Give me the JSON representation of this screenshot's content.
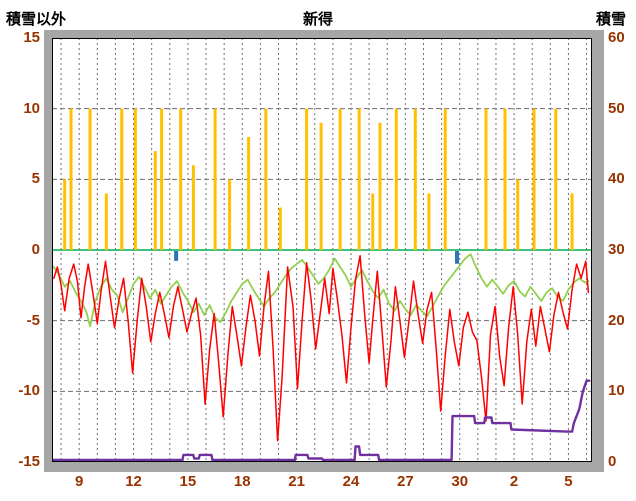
{
  "colors": {
    "frame": "#a6a6a6",
    "plot_bg": "#ffffff",
    "plot_border": "#000000",
    "grid": "#6e6e6e",
    "zero_line": "#00b050",
    "bars": "#ffc000",
    "temp_line": "#ff0000",
    "green_line": "#92d050",
    "snow_line": "#7030a0",
    "precip_mark": "#2e75b6",
    "tick_label": "#993300",
    "title_text": "#000000"
  },
  "chart_data": {
    "type": "line",
    "title": "新得",
    "left_axis": {
      "label": "積雪以外",
      "min": -15,
      "max": 15,
      "ticks": [
        15,
        10,
        5,
        0,
        -5,
        -10,
        -15
      ]
    },
    "right_axis": {
      "label": "積雪",
      "min": 0,
      "max": 60,
      "ticks": [
        60,
        50,
        40,
        30,
        20,
        10,
        0
      ]
    },
    "x_axis": {
      "min": 7.5,
      "max": 37.3,
      "grid_start": 8,
      "grid_end": 37,
      "tick_days": [
        9,
        12,
        15,
        18,
        21,
        24,
        27,
        30,
        33,
        36
      ],
      "tick_labels": [
        "9",
        "12",
        "15",
        "18",
        "21",
        "24",
        "27",
        "30",
        "2",
        "5"
      ]
    },
    "series": [
      {
        "name": "sunshine-bars",
        "kind": "bar",
        "axis": "left",
        "color_key": "bars",
        "points": [
          [
            8.2,
            5
          ],
          [
            8.55,
            10
          ],
          [
            9.6,
            10
          ],
          [
            10.5,
            4
          ],
          [
            11.35,
            10
          ],
          [
            12.1,
            10
          ],
          [
            13.2,
            7
          ],
          [
            13.55,
            10
          ],
          [
            14.6,
            10
          ],
          [
            15.3,
            6
          ],
          [
            16.5,
            10
          ],
          [
            17.3,
            5
          ],
          [
            18.35,
            8
          ],
          [
            19.3,
            10
          ],
          [
            20.1,
            3
          ],
          [
            21.55,
            10
          ],
          [
            22.35,
            9
          ],
          [
            23.4,
            10
          ],
          [
            24.45,
            10
          ],
          [
            25.2,
            4
          ],
          [
            25.6,
            9
          ],
          [
            26.5,
            10
          ],
          [
            27.55,
            10
          ],
          [
            28.3,
            4
          ],
          [
            29.2,
            10
          ],
          [
            31.45,
            10
          ],
          [
            32.5,
            10
          ],
          [
            33.2,
            5
          ],
          [
            34.1,
            10
          ],
          [
            35.3,
            10
          ],
          [
            36.2,
            4
          ]
        ]
      },
      {
        "name": "precip-marks",
        "kind": "mark",
        "axis": "left",
        "color_key": "precip_mark",
        "points": [
          [
            14.35,
            0.7
          ],
          [
            29.85,
            0.9
          ]
        ]
      },
      {
        "name": "green-line",
        "kind": "line",
        "axis": "left",
        "color_key": "green_line",
        "width": 1.8,
        "points": [
          [
            7.6,
            -1.2
          ],
          [
            7.9,
            -1.8
          ],
          [
            8.2,
            -2.6
          ],
          [
            8.5,
            -2.2
          ],
          [
            8.8,
            -3
          ],
          [
            9.1,
            -3.6
          ],
          [
            9.4,
            -4.4
          ],
          [
            9.6,
            -5.4
          ],
          [
            9.9,
            -3.6
          ],
          [
            10.2,
            -2.6
          ],
          [
            10.5,
            -2
          ],
          [
            10.8,
            -2.8
          ],
          [
            11.1,
            -3.2
          ],
          [
            11.4,
            -4.4
          ],
          [
            11.7,
            -3.4
          ],
          [
            12,
            -2.4
          ],
          [
            12.3,
            -1.9
          ],
          [
            12.6,
            -2.6
          ],
          [
            12.9,
            -3.4
          ],
          [
            13.2,
            -2.8
          ],
          [
            13.5,
            -3.8
          ],
          [
            13.8,
            -3.2
          ],
          [
            14.1,
            -2.6
          ],
          [
            14.4,
            -2.2
          ],
          [
            14.7,
            -3
          ],
          [
            15,
            -3.6
          ],
          [
            15.3,
            -4.4
          ],
          [
            15.6,
            -3.8
          ],
          [
            15.9,
            -4.6
          ],
          [
            16.2,
            -3.9
          ],
          [
            16.5,
            -4.8
          ],
          [
            16.8,
            -5.1
          ],
          [
            17.1,
            -4.4
          ],
          [
            17.4,
            -3.6
          ],
          [
            17.7,
            -3
          ],
          [
            18,
            -2.4
          ],
          [
            18.3,
            -2.1
          ],
          [
            18.6,
            -2.8
          ],
          [
            18.9,
            -3.4
          ],
          [
            19.2,
            -4
          ],
          [
            19.5,
            -3.4
          ],
          [
            19.8,
            -3
          ],
          [
            20.1,
            -2.4
          ],
          [
            20.4,
            -1.8
          ],
          [
            20.7,
            -1.3
          ],
          [
            21,
            -1
          ],
          [
            21.3,
            -0.7
          ],
          [
            21.6,
            -1.2
          ],
          [
            21.9,
            -1.8
          ],
          [
            22.2,
            -2.4
          ],
          [
            22.5,
            -2
          ],
          [
            22.8,
            -1.4
          ],
          [
            23.1,
            -0.6
          ],
          [
            23.4,
            -1.2
          ],
          [
            23.7,
            -1.8
          ],
          [
            24,
            -2.6
          ],
          [
            24.3,
            -2
          ],
          [
            24.6,
            -1.4
          ],
          [
            24.9,
            -2.2
          ],
          [
            25.2,
            -2.9
          ],
          [
            25.5,
            -3.4
          ],
          [
            25.8,
            -2.8
          ],
          [
            26.1,
            -3.8
          ],
          [
            26.4,
            -4.3
          ],
          [
            26.7,
            -3.6
          ],
          [
            27,
            -4.2
          ],
          [
            27.3,
            -4.6
          ],
          [
            27.6,
            -3.9
          ],
          [
            27.9,
            -4.3
          ],
          [
            28.2,
            -4.7
          ],
          [
            28.5,
            -4
          ],
          [
            28.8,
            -3.3
          ],
          [
            29.1,
            -2.6
          ],
          [
            29.4,
            -2.1
          ],
          [
            29.7,
            -1.6
          ],
          [
            30,
            -1.1
          ],
          [
            30.3,
            -0.6
          ],
          [
            30.6,
            -0.3
          ],
          [
            30.9,
            -1.2
          ],
          [
            31.2,
            -2
          ],
          [
            31.5,
            -2.6
          ],
          [
            31.8,
            -2.1
          ],
          [
            32.1,
            -2.6
          ],
          [
            32.4,
            -3.1
          ],
          [
            32.7,
            -2.5
          ],
          [
            33,
            -2.2
          ],
          [
            33.3,
            -2.9
          ],
          [
            33.6,
            -3.3
          ],
          [
            33.9,
            -2.6
          ],
          [
            34.2,
            -3.1
          ],
          [
            34.5,
            -3.6
          ],
          [
            34.8,
            -3
          ],
          [
            35.1,
            -2.7
          ],
          [
            35.4,
            -3.3
          ],
          [
            35.7,
            -3.6
          ],
          [
            36,
            -2.8
          ],
          [
            36.3,
            -2.3
          ],
          [
            36.6,
            -2
          ],
          [
            36.9,
            -2.3
          ],
          [
            37.1,
            -2.2
          ]
        ]
      },
      {
        "name": "temperature-line",
        "kind": "line",
        "axis": "left",
        "color_key": "temp_line",
        "width": 1.5,
        "points": [
          [
            7.6,
            -2
          ],
          [
            7.8,
            -1.2
          ],
          [
            8,
            -2.5
          ],
          [
            8.2,
            -4.3
          ],
          [
            8.45,
            -2
          ],
          [
            8.7,
            -1
          ],
          [
            8.9,
            -2.2
          ],
          [
            9.1,
            -4.8
          ],
          [
            9.3,
            -2.6
          ],
          [
            9.5,
            -1
          ],
          [
            9.75,
            -3
          ],
          [
            10,
            -5.2
          ],
          [
            10.2,
            -3
          ],
          [
            10.45,
            -0.8
          ],
          [
            10.7,
            -3.2
          ],
          [
            10.95,
            -5.5
          ],
          [
            11.2,
            -3.5
          ],
          [
            11.45,
            -2
          ],
          [
            11.7,
            -5
          ],
          [
            11.95,
            -8.7
          ],
          [
            12.2,
            -5
          ],
          [
            12.45,
            -2
          ],
          [
            12.7,
            -4
          ],
          [
            12.95,
            -6.5
          ],
          [
            13.2,
            -4.5
          ],
          [
            13.45,
            -3
          ],
          [
            13.7,
            -4.5
          ],
          [
            13.95,
            -6.2
          ],
          [
            14.2,
            -4
          ],
          [
            14.45,
            -2.6
          ],
          [
            14.7,
            -4.2
          ],
          [
            14.95,
            -5.8
          ],
          [
            15.2,
            -4.5
          ],
          [
            15.45,
            -3.4
          ],
          [
            15.7,
            -6
          ],
          [
            15.95,
            -10.9
          ],
          [
            16.2,
            -7
          ],
          [
            16.45,
            -4.5
          ],
          [
            16.7,
            -8
          ],
          [
            16.95,
            -11.8
          ],
          [
            17.2,
            -7.5
          ],
          [
            17.45,
            -4
          ],
          [
            17.7,
            -6
          ],
          [
            17.95,
            -8.2
          ],
          [
            18.2,
            -5.5
          ],
          [
            18.45,
            -3.2
          ],
          [
            18.7,
            -5
          ],
          [
            18.95,
            -7.5
          ],
          [
            19.2,
            -4
          ],
          [
            19.45,
            -1.5
          ],
          [
            19.7,
            -7
          ],
          [
            19.95,
            -13.5
          ],
          [
            20.2,
            -9
          ],
          [
            20.5,
            -1.2
          ],
          [
            20.8,
            -4
          ],
          [
            21.05,
            -9.8
          ],
          [
            21.3,
            -5
          ],
          [
            21.55,
            -0.9
          ],
          [
            21.8,
            -3.5
          ],
          [
            22.05,
            -7
          ],
          [
            22.3,
            -4.5
          ],
          [
            22.55,
            -2
          ],
          [
            22.8,
            -4.5
          ],
          [
            23,
            -1.3
          ],
          [
            23.25,
            -3.5
          ],
          [
            23.5,
            -6
          ],
          [
            23.75,
            -9.4
          ],
          [
            24,
            -5.5
          ],
          [
            24.25,
            -2.1
          ],
          [
            24.5,
            -0.4
          ],
          [
            24.75,
            -4.5
          ],
          [
            25,
            -8
          ],
          [
            25.2,
            -5
          ],
          [
            25.45,
            -1.5
          ],
          [
            25.7,
            -5.5
          ],
          [
            25.95,
            -9.7
          ],
          [
            26.2,
            -6.5
          ],
          [
            26.45,
            -2.6
          ],
          [
            26.7,
            -5
          ],
          [
            26.95,
            -7.6
          ],
          [
            27.2,
            -5
          ],
          [
            27.45,
            -2.2
          ],
          [
            27.7,
            -4.5
          ],
          [
            27.95,
            -6.6
          ],
          [
            28.2,
            -4.2
          ],
          [
            28.45,
            -3
          ],
          [
            28.7,
            -7
          ],
          [
            28.95,
            -11.4
          ],
          [
            29.2,
            -7.5
          ],
          [
            29.45,
            -4.2
          ],
          [
            29.7,
            -6.5
          ],
          [
            29.95,
            -8.2
          ],
          [
            30.2,
            -5.5
          ],
          [
            30.45,
            -4.4
          ],
          [
            30.7,
            -5.8
          ],
          [
            30.95,
            -6.4
          ],
          [
            31.2,
            -9
          ],
          [
            31.45,
            -12.1
          ],
          [
            31.7,
            -6
          ],
          [
            31.95,
            -4
          ],
          [
            32.2,
            -7.5
          ],
          [
            32.45,
            -9.6
          ],
          [
            32.7,
            -5.5
          ],
          [
            32.95,
            -2.6
          ],
          [
            33.2,
            -6
          ],
          [
            33.45,
            -10.9
          ],
          [
            33.7,
            -6.5
          ],
          [
            33.95,
            -4.2
          ],
          [
            34.2,
            -6.8
          ],
          [
            34.45,
            -4
          ],
          [
            34.7,
            -5.6
          ],
          [
            34.95,
            -7.2
          ],
          [
            35.2,
            -4.6
          ],
          [
            35.45,
            -3
          ],
          [
            35.7,
            -4.4
          ],
          [
            35.95,
            -5.6
          ],
          [
            36.2,
            -2.8
          ],
          [
            36.45,
            -1
          ],
          [
            36.7,
            -2
          ],
          [
            36.95,
            -0.8
          ],
          [
            37.1,
            -3
          ]
        ]
      },
      {
        "name": "snow-depth-line",
        "kind": "line",
        "axis": "right",
        "color_key": "snow_line",
        "width": 2.4,
        "points": [
          [
            7.6,
            0
          ],
          [
            14.7,
            0
          ],
          [
            14.75,
            1
          ],
          [
            15.3,
            1
          ],
          [
            15.35,
            0.5
          ],
          [
            15.6,
            0.5
          ],
          [
            15.65,
            1
          ],
          [
            16.3,
            1
          ],
          [
            16.35,
            0
          ],
          [
            20.9,
            0
          ],
          [
            20.95,
            1
          ],
          [
            21.6,
            1
          ],
          [
            21.65,
            0.5
          ],
          [
            22.4,
            0.5
          ],
          [
            22.45,
            0
          ],
          [
            24.2,
            0
          ],
          [
            24.25,
            2.2
          ],
          [
            24.45,
            2.2
          ],
          [
            24.5,
            1
          ],
          [
            25.5,
            1
          ],
          [
            25.55,
            0
          ],
          [
            29.55,
            0
          ],
          [
            29.6,
            6.5
          ],
          [
            30.8,
            6.5
          ],
          [
            30.85,
            5.5
          ],
          [
            31.35,
            5.5
          ],
          [
            31.4,
            6.3
          ],
          [
            31.75,
            6.3
          ],
          [
            31.8,
            5.5
          ],
          [
            32.8,
            5.5
          ],
          [
            32.85,
            4.6
          ],
          [
            35.9,
            4.3
          ],
          [
            36.2,
            4.3
          ],
          [
            36.3,
            5.5
          ],
          [
            36.6,
            7.5
          ],
          [
            36.8,
            10
          ],
          [
            37,
            11.5
          ],
          [
            37.15,
            11.5
          ]
        ]
      }
    ]
  }
}
